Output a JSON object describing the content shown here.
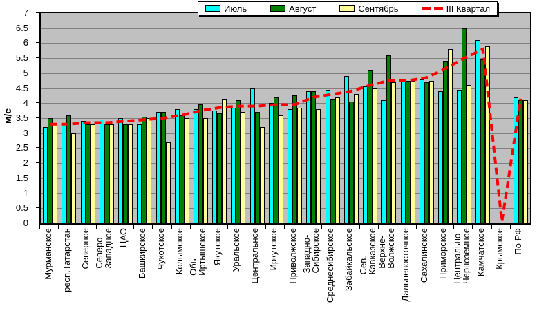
{
  "page": {
    "background": "#FFFFFF"
  },
  "legend": {
    "position": "top-center",
    "items": [
      {
        "label": "Июль",
        "symbol": "box",
        "color": "#00FFFF"
      },
      {
        "label": "Август",
        "symbol": "box",
        "color": "#008000"
      },
      {
        "label": "Сентябрь",
        "symbol": "box",
        "color": "#FFFF99"
      },
      {
        "label": "III Квартал",
        "symbol": "dash",
        "color": "#FF0000"
      }
    ]
  },
  "chart_data": {
    "type": "bar",
    "title": "",
    "xlabel": "",
    "ylabel": "м/с",
    "ylim": [
      0,
      7
    ],
    "ytick_step": 0.5,
    "grid": true,
    "plot_background": "#C0C0C0",
    "gridline_color": "#808080",
    "legend_position": "top",
    "categories": [
      "Мурманское",
      "респ.Татарстан",
      "Северное",
      "Северо-Западное",
      "ЦАО",
      "Башкирское",
      "Чукотское",
      "Колымское",
      "Обь-Иртышское",
      "Якутское",
      "Уральское",
      "Центральное",
      "Иркутское",
      "Приволжское",
      "Западно-Сибирское",
      "Среднесибирское",
      "Забайкальское",
      "Сев.-Кавказское",
      "Верхне-Волжское",
      "Дальневосточное",
      "Сахалинское",
      "Приморское",
      "Центрально-Черноземное",
      "Камчатское",
      "Крымское",
      "По РФ"
    ],
    "category_label_lines": [
      [
        "Мурманское"
      ],
      [
        "респ.Татарстан"
      ],
      [
        "Северное"
      ],
      [
        "Северо-",
        "Западное"
      ],
      [
        "ЦАО"
      ],
      [
        "Башкирское"
      ],
      [
        "Чукотское"
      ],
      [
        "Колымское"
      ],
      [
        "Обь-",
        "Иртышское"
      ],
      [
        "Якутское"
      ],
      [
        "Уральское"
      ],
      [
        "Центральное"
      ],
      [
        "Иркутское"
      ],
      [
        "Приволжское"
      ],
      [
        "Западно-",
        "Сибирское"
      ],
      [
        "Среднесибирское"
      ],
      [
        "Забайкальское"
      ],
      [
        "Сев.-",
        "Кавказское"
      ],
      [
        "Верхне-",
        "Волжское"
      ],
      [
        "Дальневосточное"
      ],
      [
        "Сахалинское"
      ],
      [
        "Приморское"
      ],
      [
        "Центрально-",
        "Черноземное"
      ],
      [
        "Камчатское"
      ],
      [
        "Крымское"
      ],
      [
        "По РФ"
      ]
    ],
    "series": [
      {
        "name": "Июль",
        "type": "bar",
        "color": "#00FFFF",
        "values": [
          3.2,
          3.35,
          3.4,
          3.45,
          3.5,
          3.3,
          3.7,
          3.8,
          3.8,
          3.75,
          3.85,
          4.5,
          4.0,
          3.8,
          4.4,
          4.45,
          4.9,
          4.55,
          4.1,
          4.8,
          4.8,
          4.4,
          4.45,
          6.1,
          0,
          4.2
        ]
      },
      {
        "name": "Август",
        "type": "bar",
        "color": "#008000",
        "values": [
          3.5,
          3.6,
          3.3,
          3.3,
          3.3,
          3.55,
          3.7,
          3.6,
          3.95,
          3.65,
          4.1,
          3.7,
          4.2,
          4.25,
          4.4,
          4.15,
          4.05,
          5.1,
          5.6,
          4.75,
          4.7,
          5.4,
          6.5,
          5.45,
          0,
          4.1
        ]
      },
      {
        "name": "Сентябрь",
        "type": "bar",
        "color": "#FFFF99",
        "values": [
          3.35,
          3.0,
          3.3,
          3.3,
          3.3,
          3.5,
          2.7,
          3.5,
          3.5,
          4.15,
          3.7,
          3.2,
          3.6,
          3.85,
          3.8,
          4.2,
          4.3,
          4.5,
          4.7,
          4.75,
          4.75,
          5.8,
          4.6,
          5.9,
          0,
          4.1
        ]
      },
      {
        "name": "III Квартал",
        "type": "line",
        "style": "dashed",
        "color": "#FF0000",
        "values": [
          3.3,
          3.3,
          3.35,
          3.35,
          3.4,
          3.45,
          3.5,
          3.6,
          3.75,
          3.85,
          3.9,
          3.9,
          3.95,
          3.95,
          4.2,
          4.3,
          4.4,
          4.6,
          4.75,
          4.75,
          4.85,
          5.15,
          5.5,
          5.8,
          0.05,
          4.15
        ]
      }
    ]
  }
}
